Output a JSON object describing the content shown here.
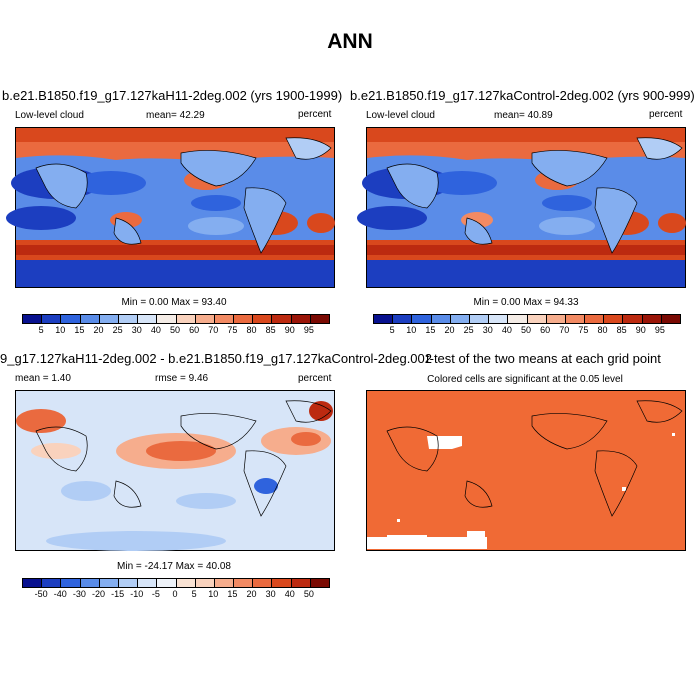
{
  "title": "ANN",
  "top_left": {
    "case_title": "b.e21.B1850.f19_g17.127kaH11-2deg.002 (yrs 1900-1999)",
    "variable": "Low-level cloud",
    "mean": "mean=  42.29",
    "units": "percent",
    "minmax": "Min =   0.00 Max =  93.40"
  },
  "top_right": {
    "case_title": "b.e21.B1850.f19_g17.127kaControl-2deg.002 (yrs 900-999)",
    "variable": "Low-level cloud",
    "mean": "mean=  40.89",
    "units": "percent",
    "minmax": "Min =   0.00 Max =  94.33"
  },
  "bottom_left": {
    "case_title": "9_g17.127kaH11-2deg.002 - b.e21.B1850.f19_g17.127kaControl-2deg.002",
    "mean": "mean =   1.40",
    "rmse": "rmse =   9.46",
    "units": "percent",
    "minmax": "Min = -24.17 Max =  40.08"
  },
  "bottom_right": {
    "title": "t-test of the two means at each grid point",
    "subtitle": "Colored cells are significant at the 0.05 level",
    "fill_color": "#f06a35"
  },
  "abs_colorbar": {
    "labels": [
      "5",
      "10",
      "15",
      "20",
      "25",
      "30",
      "40",
      "50",
      "60",
      "70",
      "75",
      "80",
      "85",
      "90",
      "95"
    ],
    "colors": [
      "#08118f",
      "#1c3ec0",
      "#2f63dd",
      "#5a8ce8",
      "#84aef0",
      "#b1cdf5",
      "#d7e5f8",
      "#f4ece6",
      "#f9d2bd",
      "#f6ad8d",
      "#f28a63",
      "#ea6a3f",
      "#d9481d",
      "#bc2a10",
      "#9a1508",
      "#7a0a03"
    ]
  },
  "diff_colorbar": {
    "labels": [
      "-50",
      "-40",
      "-30",
      "-20",
      "-15",
      "-10",
      "-5",
      "0",
      "5",
      "10",
      "15",
      "20",
      "30",
      "40",
      "50"
    ],
    "colors": [
      "#08118f",
      "#1c3ec0",
      "#2f63dd",
      "#5a8ce8",
      "#84aef0",
      "#b1cdf5",
      "#d7e5f8",
      "#eef2f8",
      "#f9e2d3",
      "#f9d2bd",
      "#f6ad8d",
      "#f28a63",
      "#ea6a3f",
      "#d9481d",
      "#bc2a10",
      "#7a0a03"
    ]
  }
}
